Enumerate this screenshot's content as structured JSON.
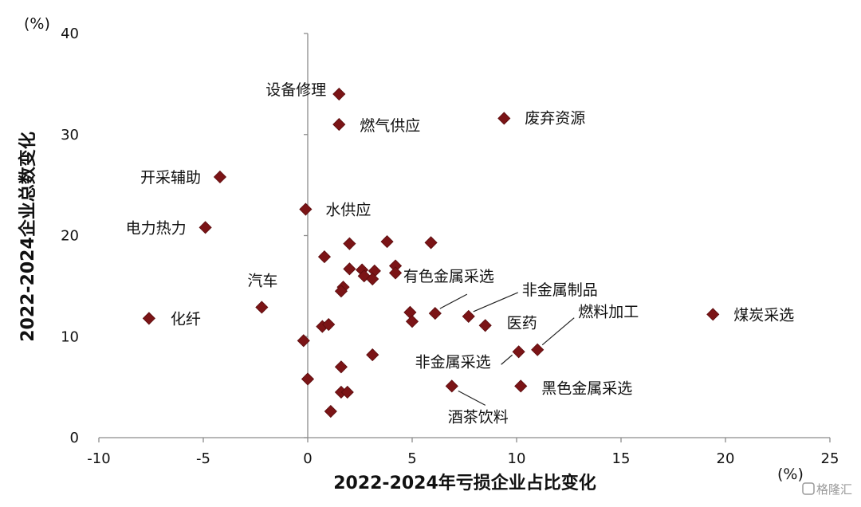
{
  "chart_data": {
    "type": "scatter",
    "xlabel": "2022-2024年亏损企业占比变化",
    "ylabel": "2022-2024企业总数变化",
    "x_unit": "(%)",
    "y_unit": "(%)",
    "xlim": [
      -10,
      25
    ],
    "ylim": [
      0,
      40
    ],
    "x_ticks": [
      -10,
      -5,
      0,
      5,
      10,
      15,
      20,
      25
    ],
    "y_ticks": [
      0,
      10,
      20,
      30,
      40
    ],
    "grid": false,
    "marker_color": "#7b1416",
    "marker": "diamond",
    "points": [
      {
        "x": 1.5,
        "y": 34.0,
        "label": "设备修理"
      },
      {
        "x": 1.5,
        "y": 31.0,
        "label": "燃气供应"
      },
      {
        "x": 9.4,
        "y": 31.6,
        "label": "废弃资源"
      },
      {
        "x": -4.2,
        "y": 25.8,
        "label": "开采辅助"
      },
      {
        "x": -0.1,
        "y": 22.6,
        "label": "水供应"
      },
      {
        "x": -4.9,
        "y": 20.8,
        "label": "电力热力"
      },
      {
        "x": -2.2,
        "y": 12.9,
        "label": "汽车"
      },
      {
        "x": -7.6,
        "y": 11.8,
        "label": "化纤"
      },
      {
        "x": 6.1,
        "y": 12.3,
        "label": "有色金属采选"
      },
      {
        "x": 7.7,
        "y": 12.0,
        "label": "非金属制品"
      },
      {
        "x": 19.4,
        "y": 12.2,
        "label": "煤炭采选"
      },
      {
        "x": 8.5,
        "y": 11.1,
        "label": "医药"
      },
      {
        "x": 11.0,
        "y": 8.7,
        "label": "燃料加工"
      },
      {
        "x": 10.1,
        "y": 8.5,
        "label": "非金属采选"
      },
      {
        "x": 10.2,
        "y": 5.1,
        "label": "黑色金属采选"
      },
      {
        "x": 6.9,
        "y": 5.1,
        "label": "酒茶饮料"
      },
      {
        "x": 2.0,
        "y": 19.2
      },
      {
        "x": 3.8,
        "y": 19.4
      },
      {
        "x": 5.9,
        "y": 19.3
      },
      {
        "x": 0.8,
        "y": 17.9
      },
      {
        "x": 2.0,
        "y": 16.7
      },
      {
        "x": 2.6,
        "y": 16.6
      },
      {
        "x": 3.2,
        "y": 16.5
      },
      {
        "x": 4.2,
        "y": 17.0
      },
      {
        "x": 4.2,
        "y": 16.3
      },
      {
        "x": 2.7,
        "y": 16.0
      },
      {
        "x": 3.1,
        "y": 15.7
      },
      {
        "x": 1.7,
        "y": 14.9
      },
      {
        "x": 1.6,
        "y": 14.5
      },
      {
        "x": 4.9,
        "y": 12.4
      },
      {
        "x": 5.0,
        "y": 11.5
      },
      {
        "x": 0.7,
        "y": 11.0
      },
      {
        "x": 1.0,
        "y": 11.2
      },
      {
        "x": -0.2,
        "y": 9.6
      },
      {
        "x": 3.1,
        "y": 8.2
      },
      {
        "x": 1.6,
        "y": 7.0
      },
      {
        "x": 0.0,
        "y": 5.8
      },
      {
        "x": 1.6,
        "y": 4.5
      },
      {
        "x": 1.9,
        "y": 4.5
      },
      {
        "x": 1.1,
        "y": 2.6
      }
    ]
  },
  "watermark": "格隆汇"
}
